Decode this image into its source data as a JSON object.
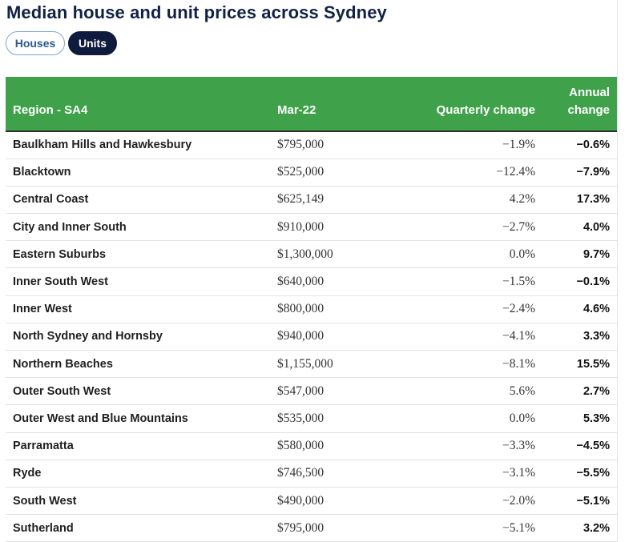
{
  "title": "Median house and unit prices across Sydney",
  "toggle": {
    "houses_label": "Houses",
    "units_label": "Units",
    "active": "Units"
  },
  "colors": {
    "header_bg": "#3fa24a",
    "title": "#122244",
    "active_pill": "#0f1b3c",
    "inactive_pill_border": "#7aa7cf"
  },
  "table": {
    "headers": {
      "region": "Region - SA4",
      "price": "Mar-22",
      "quarterly": "Quarterly change",
      "annual": "Annual change"
    },
    "rows": [
      {
        "region": "Baulkham Hills and Hawkesbury",
        "price": "$795,000",
        "quarterly": "−1.9%",
        "annual": "−0.6%"
      },
      {
        "region": "Blacktown",
        "price": "$525,000",
        "quarterly": "−12.4%",
        "annual": "−7.9%"
      },
      {
        "region": "Central Coast",
        "price": "$625,149",
        "quarterly": "4.2%",
        "annual": "17.3%"
      },
      {
        "region": "City and Inner South",
        "price": "$910,000",
        "quarterly": "−2.7%",
        "annual": "4.0%"
      },
      {
        "region": "Eastern Suburbs",
        "price": "$1,300,000",
        "quarterly": "0.0%",
        "annual": "9.7%"
      },
      {
        "region": "Inner South West",
        "price": "$640,000",
        "quarterly": "−1.5%",
        "annual": "−0.1%"
      },
      {
        "region": "Inner West",
        "price": "$800,000",
        "quarterly": "−2.4%",
        "annual": "4.6%"
      },
      {
        "region": "North Sydney and Hornsby",
        "price": "$940,000",
        "quarterly": "−4.1%",
        "annual": "3.3%"
      },
      {
        "region": "Northern Beaches",
        "price": "$1,155,000",
        "quarterly": "−8.1%",
        "annual": "15.5%"
      },
      {
        "region": "Outer South West",
        "price": "$547,000",
        "quarterly": "5.6%",
        "annual": "2.7%"
      },
      {
        "region": "Outer West and Blue Mountains",
        "price": "$535,000",
        "quarterly": "0.0%",
        "annual": "5.3%"
      },
      {
        "region": "Parramatta",
        "price": "$580,000",
        "quarterly": "−3.3%",
        "annual": "−4.5%"
      },
      {
        "region": "Ryde",
        "price": "$746,500",
        "quarterly": "−3.1%",
        "annual": "−5.5%"
      },
      {
        "region": "South West",
        "price": "$490,000",
        "quarterly": "−2.0%",
        "annual": "−5.1%"
      },
      {
        "region": "Sutherland",
        "price": "$795,000",
        "quarterly": "−5.1%",
        "annual": "3.2%"
      }
    ]
  }
}
